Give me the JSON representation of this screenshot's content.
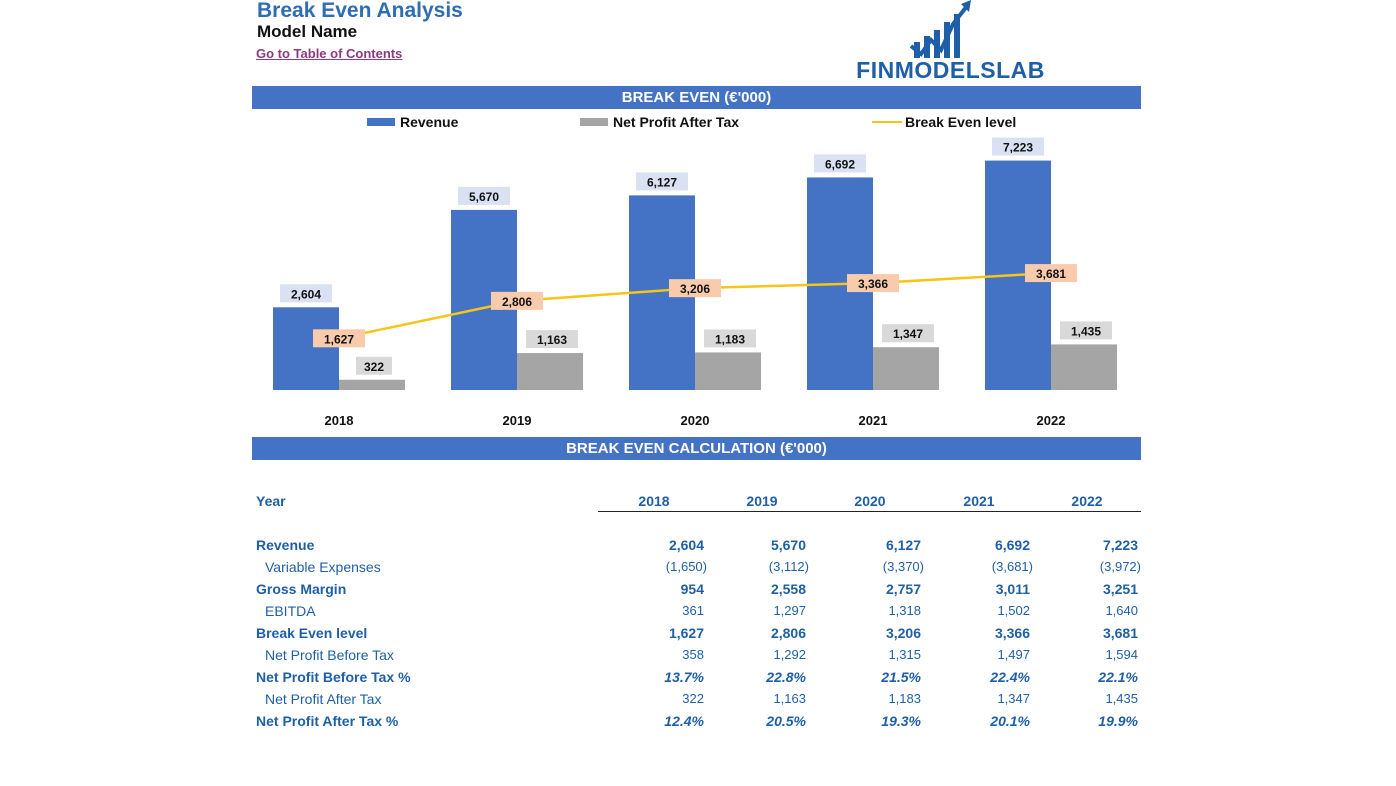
{
  "header": {
    "title": "Break Even Analysis",
    "model_name": "Model Name",
    "toc_link": "Go to Table of Contents",
    "logo_text": "FINMODELSLAB"
  },
  "chart_banner": "BREAK EVEN (€'000)",
  "calc_banner": "BREAK EVEN CALCULATION (€'000)",
  "colors": {
    "revenue": "#4472C4",
    "net_profit": "#A5A5A5",
    "break_even": "#F5C518",
    "label_revenue_bg": "#D9E1F2",
    "label_profit_bg": "#D9D9D9",
    "label_be_bg": "#F8CBAD"
  },
  "chart_data": {
    "type": "bar",
    "categories": [
      "2018",
      "2019",
      "2020",
      "2021",
      "2022"
    ],
    "series": [
      {
        "name": "Revenue",
        "type": "bar",
        "values": [
          2604,
          5670,
          6127,
          6692,
          7223
        ],
        "labels": [
          "2,604",
          "5,670",
          "6,127",
          "6,692",
          "7,223"
        ]
      },
      {
        "name": "Net Profit After Tax",
        "type": "bar",
        "values": [
          322,
          1163,
          1183,
          1347,
          1435
        ],
        "labels": [
          "322",
          "1,163",
          "1,183",
          "1,347",
          "1,435"
        ]
      },
      {
        "name": "Break Even level",
        "type": "line",
        "values": [
          1627,
          2806,
          3206,
          3366,
          3681
        ],
        "labels": [
          "1,627",
          "2,806",
          "3,206",
          "3,366",
          "3,681"
        ]
      }
    ],
    "ylim": [
      0,
      8000
    ],
    "legend": "top",
    "grid": false
  },
  "table": {
    "year_label": "Year",
    "years": [
      "2018",
      "2019",
      "2020",
      "2021",
      "2022"
    ],
    "rows": [
      {
        "label": "Revenue",
        "style": "bold",
        "values": [
          "2,604",
          "5,670",
          "6,127",
          "6,692",
          "7,223"
        ]
      },
      {
        "label": "Variable Expenses",
        "style": "sub-paren",
        "values": [
          "(1,650)",
          "(3,112)",
          "(3,370)",
          "(3,681)",
          "(3,972)"
        ]
      },
      {
        "label": "Gross Margin",
        "style": "bold",
        "values": [
          "954",
          "2,558",
          "2,757",
          "3,011",
          "3,251"
        ]
      },
      {
        "label": "EBITDA",
        "style": "sub",
        "values": [
          "361",
          "1,297",
          "1,318",
          "1,502",
          "1,640"
        ]
      },
      {
        "label": "Break Even level",
        "style": "bold",
        "values": [
          "1,627",
          "2,806",
          "3,206",
          "3,366",
          "3,681"
        ]
      },
      {
        "label": "Net Profit Before Tax",
        "style": "sub",
        "values": [
          "358",
          "1,292",
          "1,315",
          "1,497",
          "1,594"
        ]
      },
      {
        "label": "Net Profit Before Tax %",
        "style": "pct",
        "values": [
          "13.7%",
          "22.8%",
          "21.5%",
          "22.4%",
          "22.1%"
        ]
      },
      {
        "label": "Net Profit After Tax",
        "style": "sub",
        "values": [
          "322",
          "1,163",
          "1,183",
          "1,347",
          "1,435"
        ]
      },
      {
        "label": "Net Profit After Tax %",
        "style": "pct",
        "values": [
          "12.4%",
          "20.5%",
          "19.3%",
          "20.1%",
          "19.9%"
        ]
      }
    ]
  }
}
